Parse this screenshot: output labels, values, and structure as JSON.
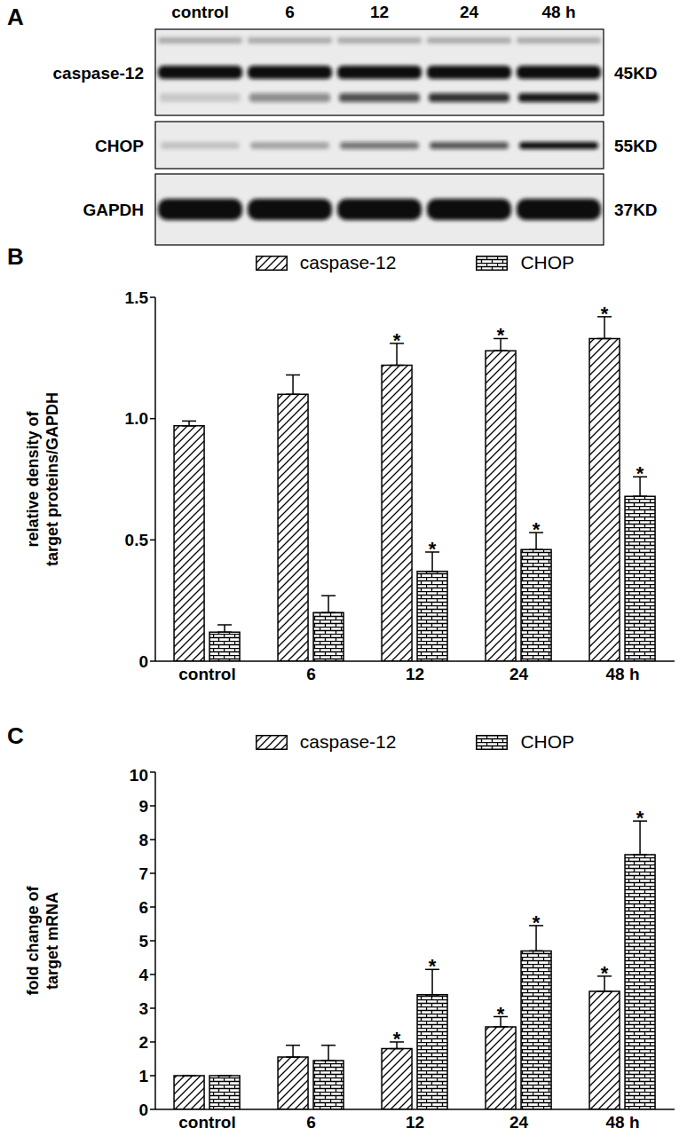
{
  "blot": {
    "panel": "A",
    "lanes": [
      "control",
      "6",
      "12",
      "24",
      "48 h"
    ],
    "rows": [
      {
        "name": "caspase-12",
        "size": "45KD"
      },
      {
        "name": "CHOP",
        "size": "55KD"
      },
      {
        "name": "GAPDH",
        "size": "37KD"
      }
    ]
  },
  "chart_data": [
    {
      "type": "bar",
      "panel": "B",
      "ylabel": [
        "relative density of",
        "target proteins/GAPDH"
      ],
      "categories": [
        "control",
        "6",
        "12",
        "24",
        "48 h"
      ],
      "ylim": [
        0,
        1.5
      ],
      "yticks": [
        0,
        0.5,
        {
          "value": 1,
          "label": "1.0"
        },
        1.5
      ],
      "legend": "top",
      "series": [
        {
          "name": "caspase-12",
          "color": "#000000",
          "values": [
            0.97,
            1.1,
            1.22,
            1.28,
            1.33
          ],
          "errors": [
            0.02,
            0.08,
            0.09,
            0.05,
            0.09
          ],
          "significance": [
            null,
            null,
            "*",
            "*",
            "*"
          ]
        },
        {
          "name": "CHOP",
          "color": "#000000",
          "values": [
            0.12,
            0.2,
            0.37,
            0.46,
            0.68
          ],
          "errors": [
            0.03,
            0.07,
            0.08,
            0.07,
            0.08
          ],
          "significance": [
            null,
            null,
            "*",
            "*",
            "*"
          ]
        }
      ]
    },
    {
      "type": "bar",
      "panel": "C",
      "ylabel": [
        "fold change of",
        "target mRNA"
      ],
      "categories": [
        "control",
        "6",
        "12",
        "24",
        "48 h"
      ],
      "ylim": [
        0,
        10
      ],
      "yticks": [
        0,
        1,
        2,
        3,
        4,
        5,
        6,
        7,
        8,
        9,
        10
      ],
      "legend": "top",
      "series": [
        {
          "name": "caspase-12",
          "color": "#000000",
          "values": [
            1.0,
            1.55,
            1.8,
            2.45,
            3.5
          ],
          "errors": [
            0,
            0.35,
            0.2,
            0.3,
            0.45
          ],
          "significance": [
            null,
            null,
            "*",
            "*",
            "*"
          ]
        },
        {
          "name": "CHOP",
          "color": "#000000",
          "values": [
            1.0,
            1.45,
            3.4,
            4.7,
            7.55
          ],
          "errors": [
            0,
            0.45,
            0.75,
            0.75,
            1.0
          ],
          "significance": [
            null,
            null,
            "*",
            "*",
            "*"
          ]
        }
      ]
    }
  ]
}
